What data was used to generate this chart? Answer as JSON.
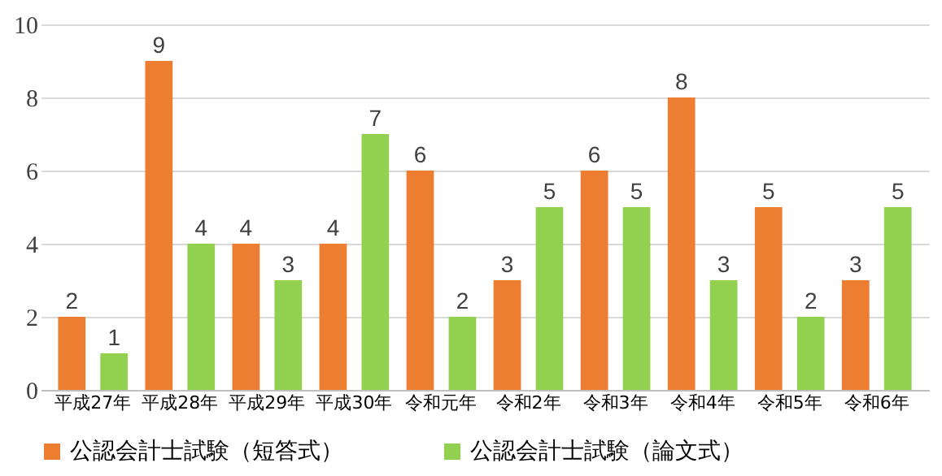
{
  "chart_data": {
    "type": "bar",
    "categories": [
      "平成27年",
      "平成28年",
      "平成29年",
      "平成30年",
      "令和元年",
      "令和2年",
      "令和3年",
      "令和4年",
      "令和5年",
      "令和6年"
    ],
    "series": [
      {
        "name": "公認会計士試験（短答式）",
        "color": "#ed7d31",
        "values": [
          2,
          9,
          4,
          4,
          6,
          3,
          6,
          8,
          5,
          3
        ]
      },
      {
        "name": "公認会計士試験（論文式）",
        "color": "#92d050",
        "values": [
          1,
          4,
          3,
          7,
          2,
          5,
          5,
          3,
          2,
          5
        ]
      }
    ],
    "ylim": [
      0,
      10
    ],
    "yticks": [
      0,
      2,
      4,
      6,
      8,
      10
    ],
    "grid": "y",
    "legend": "bottom",
    "data_labels": true
  }
}
